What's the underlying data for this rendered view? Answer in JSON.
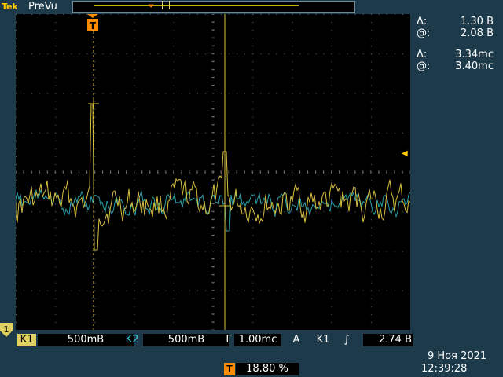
{
  "header": {
    "brand_main": "Tek",
    "status": "PreVu"
  },
  "cursors": {
    "amplitude": {
      "delta_symbol": "Δ:",
      "delta_value": "1.30 B",
      "at_symbol": "@:",
      "at_value": "2.08 B"
    },
    "time": {
      "delta_symbol": "Δ:",
      "delta_value": "3.34mc",
      "at_symbol": "@:",
      "at_value": "3.40mc"
    }
  },
  "channels": {
    "ch1": {
      "label": "K1",
      "scale": "500mB",
      "color": "#d8c040"
    },
    "ch2": {
      "label": "K2",
      "scale": "500mB",
      "color": "#2aa0a8"
    }
  },
  "ch1_marker_label": "1",
  "trigger_marker_label": "T",
  "timebase": {
    "symbol": "Γ",
    "scale": "1.00mc"
  },
  "trigger": {
    "mode": "A",
    "source": "K1",
    "slope_symbol": "∫",
    "level": "2.74 B"
  },
  "trigger_position": {
    "icon": "T",
    "value": "18.80 %"
  },
  "clock": {
    "date": "9 Ноя 2021",
    "time": "12:39:28"
  },
  "colors": {
    "screen": "#000000",
    "frame": "#1c3a4a",
    "grid": "#6b6b6b",
    "cursor": "#d8c040"
  }
}
